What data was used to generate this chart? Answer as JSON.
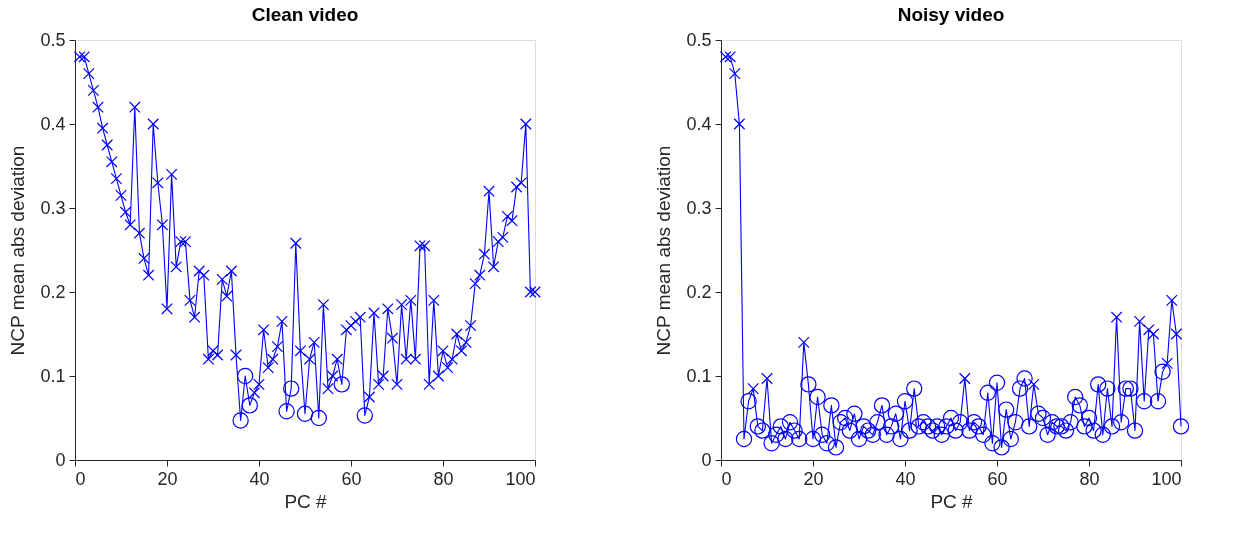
{
  "chart_data": [
    {
      "type": "line",
      "title": "Clean video",
      "xlabel": "PC #",
      "ylabel": "NCP mean abs deviation",
      "xlim": [
        0,
        100
      ],
      "ylim": [
        0,
        0.5
      ],
      "xticks": [
        0,
        20,
        40,
        60,
        80,
        100
      ],
      "yticks": [
        0,
        0.1,
        0.2,
        0.3,
        0.4,
        0.5
      ],
      "grid": false,
      "x": [
        1,
        2,
        3,
        4,
        5,
        6,
        7,
        8,
        9,
        10,
        11,
        12,
        13,
        14,
        15,
        16,
        17,
        18,
        19,
        20,
        21,
        22,
        23,
        24,
        25,
        26,
        27,
        28,
        29,
        30,
        31,
        32,
        33,
        34,
        35,
        36,
        37,
        38,
        39,
        40,
        41,
        42,
        43,
        44,
        45,
        46,
        47,
        48,
        49,
        50,
        51,
        52,
        53,
        54,
        55,
        56,
        57,
        58,
        59,
        60,
        61,
        62,
        63,
        64,
        65,
        66,
        67,
        68,
        69,
        70,
        71,
        72,
        73,
        74,
        75,
        76,
        77,
        78,
        79,
        80,
        81,
        82,
        83,
        84,
        85,
        86,
        87,
        88,
        89,
        90,
        91,
        92,
        93,
        94,
        95,
        96,
        97,
        98,
        99,
        100
      ],
      "series": [
        {
          "type": "line",
          "marker": "none",
          "line_style": "solid",
          "color": "#0000ff",
          "values": [
            0.48,
            0.48,
            0.46,
            0.44,
            0.42,
            0.395,
            0.375,
            0.355,
            0.335,
            0.315,
            0.295,
            0.28,
            0.42,
            0.27,
            0.24,
            0.22,
            0.4,
            0.33,
            0.28,
            0.18,
            0.34,
            0.23,
            0.26,
            0.26,
            0.19,
            0.17,
            0.225,
            0.22,
            0.12,
            0.13,
            0.125,
            0.215,
            0.195,
            0.225,
            0.125,
            0.047,
            0.1,
            0.065,
            0.08,
            0.09,
            0.155,
            0.11,
            0.12,
            0.135,
            0.165,
            0.058,
            0.085,
            0.258,
            0.13,
            0.055,
            0.12,
            0.14,
            0.05,
            0.185,
            0.085,
            0.1,
            0.12,
            0.09,
            0.155,
            0.16,
            0.165,
            0.17,
            0.053,
            0.075,
            0.175,
            0.09,
            0.1,
            0.18,
            0.145,
            0.09,
            0.185,
            0.12,
            0.19,
            0.12,
            0.255,
            0.255,
            0.09,
            0.19,
            0.1,
            0.13,
            0.11,
            0.12,
            0.15,
            0.13,
            0.14,
            0.16,
            0.21,
            0.22,
            0.245,
            0.32,
            0.23,
            0.26,
            0.265,
            0.29,
            0.285,
            0.325,
            0.33,
            0.4,
            0.2,
            0.2
          ]
        },
        {
          "type": "scatter",
          "marker": "cross",
          "color": "#0000ff",
          "x": [
            1,
            2,
            3,
            4,
            5,
            6,
            7,
            8,
            9,
            10,
            11,
            12,
            13,
            14,
            15,
            16,
            17,
            18,
            19,
            20,
            21,
            22,
            23,
            24,
            25,
            26,
            27,
            28,
            29,
            30,
            31,
            32,
            33,
            34,
            35,
            39,
            40,
            41,
            42,
            43,
            44,
            45,
            48,
            49,
            51,
            52,
            54,
            55,
            56,
            57,
            59,
            60,
            61,
            62,
            64,
            65,
            66,
            67,
            68,
            69,
            70,
            71,
            72,
            73,
            74,
            75,
            76,
            77,
            78,
            79,
            80,
            81,
            82,
            83,
            84,
            85,
            86,
            87,
            88,
            89,
            90,
            91,
            92,
            93,
            94,
            95,
            96,
            97,
            98,
            99,
            100
          ],
          "values": [
            0.48,
            0.48,
            0.46,
            0.44,
            0.42,
            0.395,
            0.375,
            0.355,
            0.335,
            0.315,
            0.295,
            0.28,
            0.42,
            0.27,
            0.24,
            0.22,
            0.4,
            0.33,
            0.28,
            0.18,
            0.34,
            0.23,
            0.26,
            0.26,
            0.19,
            0.17,
            0.225,
            0.22,
            0.12,
            0.13,
            0.125,
            0.215,
            0.195,
            0.225,
            0.125,
            0.08,
            0.09,
            0.155,
            0.11,
            0.12,
            0.135,
            0.165,
            0.258,
            0.13,
            0.12,
            0.14,
            0.185,
            0.085,
            0.1,
            0.12,
            0.155,
            0.16,
            0.165,
            0.17,
            0.075,
            0.175,
            0.09,
            0.1,
            0.18,
            0.145,
            0.09,
            0.185,
            0.12,
            0.19,
            0.12,
            0.255,
            0.255,
            0.09,
            0.19,
            0.1,
            0.13,
            0.11,
            0.12,
            0.15,
            0.13,
            0.14,
            0.16,
            0.21,
            0.22,
            0.245,
            0.32,
            0.23,
            0.26,
            0.265,
            0.29,
            0.285,
            0.325,
            0.33,
            0.4,
            0.2,
            0.2
          ]
        },
        {
          "type": "scatter",
          "marker": "circle",
          "color": "#0000ff",
          "x": [
            36,
            37,
            38,
            46,
            47,
            50,
            53,
            58,
            63
          ],
          "values": [
            0.047,
            0.1,
            0.065,
            0.058,
            0.085,
            0.055,
            0.05,
            0.09,
            0.053
          ]
        }
      ]
    },
    {
      "type": "line",
      "title": "Noisy video",
      "xlabel": "PC #",
      "ylabel": "NCP mean abs deviation",
      "xlim": [
        0,
        100
      ],
      "ylim": [
        0,
        0.5
      ],
      "xticks": [
        0,
        20,
        40,
        60,
        80,
        100
      ],
      "yticks": [
        0,
        0.1,
        0.2,
        0.3,
        0.4,
        0.5
      ],
      "grid": false,
      "x": [
        1,
        2,
        3,
        4,
        5,
        6,
        7,
        8,
        9,
        10,
        11,
        12,
        13,
        14,
        15,
        16,
        17,
        18,
        19,
        20,
        21,
        22,
        23,
        24,
        25,
        26,
        27,
        28,
        29,
        30,
        31,
        32,
        33,
        34,
        35,
        36,
        37,
        38,
        39,
        40,
        41,
        42,
        43,
        44,
        45,
        46,
        47,
        48,
        49,
        50,
        51,
        52,
        53,
        54,
        55,
        56,
        57,
        58,
        59,
        60,
        61,
        62,
        63,
        64,
        65,
        66,
        67,
        68,
        69,
        70,
        71,
        72,
        73,
        74,
        75,
        76,
        77,
        78,
        79,
        80,
        81,
        82,
        83,
        84,
        85,
        86,
        87,
        88,
        89,
        90,
        91,
        92,
        93,
        94,
        95,
        96,
        97,
        98,
        99,
        100
      ],
      "series": [
        {
          "type": "line",
          "marker": "none",
          "line_style": "solid",
          "color": "#0000ff",
          "values": [
            0.48,
            0.48,
            0.46,
            0.4,
            0.025,
            0.07,
            0.085,
            0.04,
            0.035,
            0.097,
            0.02,
            0.03,
            0.04,
            0.025,
            0.045,
            0.035,
            0.025,
            0.14,
            0.09,
            0.025,
            0.075,
            0.03,
            0.02,
            0.065,
            0.015,
            0.045,
            0.05,
            0.035,
            0.055,
            0.025,
            0.04,
            0.035,
            0.03,
            0.045,
            0.065,
            0.03,
            0.04,
            0.055,
            0.025,
            0.07,
            0.035,
            0.085,
            0.04,
            0.045,
            0.04,
            0.035,
            0.04,
            0.03,
            0.04,
            0.05,
            0.035,
            0.045,
            0.097,
            0.035,
            0.045,
            0.04,
            0.03,
            0.08,
            0.02,
            0.092,
            0.015,
            0.06,
            0.025,
            0.045,
            0.085,
            0.097,
            0.04,
            0.09,
            0.055,
            0.05,
            0.03,
            0.045,
            0.04,
            0.04,
            0.035,
            0.045,
            0.075,
            0.065,
            0.04,
            0.05,
            0.035,
            0.09,
            0.03,
            0.085,
            0.04,
            0.17,
            0.045,
            0.085,
            0.085,
            0.035,
            0.165,
            0.07,
            0.155,
            0.15,
            0.07,
            0.105,
            0.115,
            0.19,
            0.15,
            0.04
          ]
        },
        {
          "type": "scatter",
          "marker": "cross",
          "color": "#0000ff",
          "x": [
            1,
            2,
            3,
            4,
            7,
            10,
            18,
            53,
            68,
            86,
            91,
            93,
            94,
            97,
            98,
            99
          ],
          "values": [
            0.48,
            0.48,
            0.46,
            0.4,
            0.085,
            0.097,
            0.14,
            0.097,
            0.09,
            0.17,
            0.165,
            0.155,
            0.15,
            0.115,
            0.19,
            0.15
          ]
        },
        {
          "type": "scatter",
          "marker": "circle",
          "color": "#0000ff",
          "x": [
            5,
            6,
            8,
            9,
            11,
            12,
            13,
            14,
            15,
            16,
            17,
            19,
            20,
            21,
            22,
            23,
            24,
            25,
            26,
            27,
            28,
            29,
            30,
            31,
            32,
            33,
            34,
            35,
            36,
            37,
            38,
            39,
            40,
            41,
            42,
            43,
            44,
            45,
            46,
            47,
            48,
            49,
            50,
            51,
            52,
            54,
            55,
            56,
            57,
            58,
            59,
            60,
            61,
            62,
            63,
            64,
            65,
            66,
            67,
            69,
            70,
            71,
            72,
            73,
            74,
            75,
            76,
            77,
            78,
            79,
            80,
            81,
            82,
            83,
            84,
            85,
            87,
            88,
            89,
            90,
            92,
            95,
            96,
            100
          ],
          "values": [
            0.025,
            0.07,
            0.04,
            0.035,
            0.02,
            0.03,
            0.04,
            0.025,
            0.045,
            0.035,
            0.025,
            0.09,
            0.025,
            0.075,
            0.03,
            0.02,
            0.065,
            0.015,
            0.045,
            0.05,
            0.035,
            0.055,
            0.025,
            0.04,
            0.035,
            0.03,
            0.045,
            0.065,
            0.03,
            0.04,
            0.055,
            0.025,
            0.07,
            0.035,
            0.085,
            0.04,
            0.045,
            0.04,
            0.035,
            0.04,
            0.03,
            0.04,
            0.05,
            0.035,
            0.045,
            0.035,
            0.045,
            0.04,
            0.03,
            0.08,
            0.02,
            0.092,
            0.015,
            0.06,
            0.025,
            0.045,
            0.085,
            0.097,
            0.04,
            0.055,
            0.05,
            0.03,
            0.045,
            0.04,
            0.04,
            0.035,
            0.045,
            0.075,
            0.065,
            0.04,
            0.05,
            0.035,
            0.09,
            0.03,
            0.085,
            0.04,
            0.045,
            0.085,
            0.085,
            0.035,
            0.07,
            0.07,
            0.105,
            0.04
          ]
        }
      ]
    }
  ]
}
